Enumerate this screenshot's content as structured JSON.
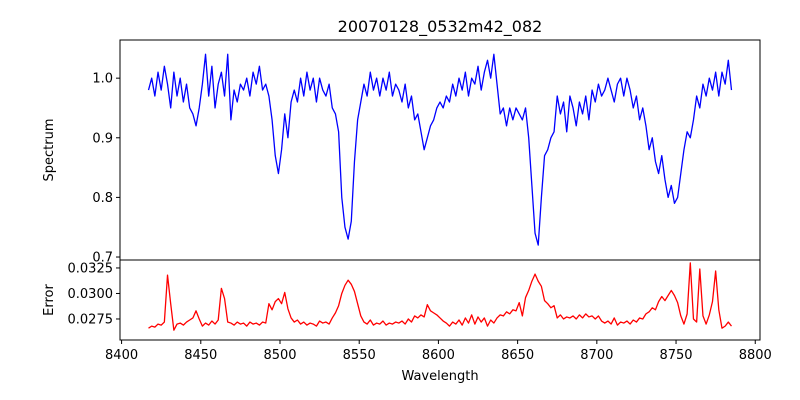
{
  "chart_data": [
    {
      "type": "line",
      "title": "20070128_0532m42_082",
      "xlabel": "",
      "ylabel": "Spectrum",
      "xlim": [
        8399,
        8803
      ],
      "ylim": [
        0.695,
        1.064
      ],
      "yticks": [
        0.7,
        0.8,
        0.9,
        1.0
      ],
      "ytick_labels": [
        "0.7",
        "0.8",
        "0.9",
        "1.0"
      ],
      "color": "#0000ff",
      "x_start": 8417,
      "x_step": 2,
      "values": [
        0.98,
        1.0,
        0.97,
        1.01,
        0.98,
        1.02,
        0.99,
        0.95,
        1.01,
        0.97,
        1.0,
        0.96,
        0.99,
        0.95,
        0.94,
        0.92,
        0.95,
        0.99,
        1.04,
        0.97,
        1.02,
        0.95,
        0.99,
        1.01,
        0.97,
        1.04,
        0.93,
        0.98,
        0.96,
        0.99,
        0.98,
        1.0,
        0.97,
        1.01,
        0.99,
        1.02,
        0.98,
        0.99,
        0.97,
        0.93,
        0.87,
        0.84,
        0.88,
        0.94,
        0.9,
        0.96,
        0.98,
        0.96,
        1.0,
        0.97,
        1.01,
        0.98,
        1.0,
        0.96,
        1.0,
        0.98,
        0.97,
        0.99,
        0.95,
        0.94,
        0.91,
        0.8,
        0.75,
        0.73,
        0.76,
        0.86,
        0.93,
        0.96,
        0.99,
        0.97,
        1.01,
        0.98,
        1.0,
        0.97,
        1.0,
        0.98,
        1.01,
        0.97,
        0.99,
        0.98,
        0.96,
        0.99,
        0.95,
        0.97,
        0.93,
        0.94,
        0.91,
        0.88,
        0.9,
        0.92,
        0.93,
        0.95,
        0.96,
        0.95,
        0.97,
        0.96,
        0.99,
        0.97,
        1.0,
        0.98,
        1.01,
        0.97,
        1.0,
        0.99,
        1.02,
        0.98,
        1.01,
        1.03,
        1.0,
        1.04,
        0.99,
        0.94,
        0.95,
        0.92,
        0.95,
        0.93,
        0.95,
        0.94,
        0.93,
        0.95,
        0.9,
        0.82,
        0.74,
        0.72,
        0.8,
        0.87,
        0.88,
        0.9,
        0.91,
        0.97,
        0.94,
        0.96,
        0.91,
        0.97,
        0.95,
        0.92,
        0.96,
        0.94,
        0.97,
        0.93,
        0.98,
        0.96,
        0.99,
        0.97,
        0.98,
        1.0,
        0.98,
        0.96,
        0.99,
        1.0,
        0.97,
        1.0,
        0.98,
        0.95,
        0.97,
        0.93,
        0.95,
        0.92,
        0.88,
        0.9,
        0.86,
        0.84,
        0.87,
        0.83,
        0.8,
        0.82,
        0.79,
        0.8,
        0.84,
        0.88,
        0.91,
        0.9,
        0.93,
        0.97,
        0.95,
        0.99,
        0.97,
        1.0,
        0.98,
        1.01,
        0.97,
        1.01,
        0.99,
        1.03,
        0.98
      ]
    },
    {
      "type": "line",
      "title": "",
      "xlabel": "Wavelength",
      "ylabel": "Error",
      "xlim": [
        8399,
        8803
      ],
      "ylim": [
        0.02544,
        0.03328
      ],
      "xticks": [
        8400,
        8450,
        8500,
        8550,
        8600,
        8650,
        8700,
        8750,
        8800
      ],
      "xtick_labels": [
        "8400",
        "8450",
        "8500",
        "8550",
        "8600",
        "8650",
        "8700",
        "8750",
        "8800"
      ],
      "yticks": [
        0.0275,
        0.03,
        0.0325
      ],
      "ytick_labels": [
        "0.0275",
        "0.0300",
        "0.0325"
      ],
      "color": "#ff0000",
      "x_start": 8417,
      "x_step": 2,
      "values": [
        0.0266,
        0.0268,
        0.0267,
        0.027,
        0.0269,
        0.0272,
        0.0318,
        0.029,
        0.0264,
        0.027,
        0.0271,
        0.0269,
        0.0272,
        0.0274,
        0.0276,
        0.0283,
        0.0275,
        0.0268,
        0.0271,
        0.0269,
        0.0273,
        0.027,
        0.0274,
        0.0305,
        0.0295,
        0.0272,
        0.0271,
        0.0269,
        0.0272,
        0.027,
        0.0271,
        0.0268,
        0.0272,
        0.027,
        0.0271,
        0.0269,
        0.0272,
        0.0271,
        0.029,
        0.0284,
        0.0292,
        0.0295,
        0.029,
        0.0301,
        0.0285,
        0.0276,
        0.0272,
        0.0274,
        0.027,
        0.0272,
        0.0269,
        0.0271,
        0.027,
        0.0268,
        0.0273,
        0.0271,
        0.0272,
        0.027,
        0.0276,
        0.0281,
        0.0288,
        0.03,
        0.0308,
        0.0313,
        0.0309,
        0.0302,
        0.029,
        0.0278,
        0.0272,
        0.027,
        0.0274,
        0.0269,
        0.0271,
        0.027,
        0.0273,
        0.0269,
        0.0271,
        0.027,
        0.0272,
        0.0271,
        0.0273,
        0.027,
        0.0275,
        0.0272,
        0.0278,
        0.0276,
        0.0279,
        0.0277,
        0.0289,
        0.0283,
        0.0281,
        0.0279,
        0.0276,
        0.0273,
        0.0271,
        0.0268,
        0.0272,
        0.027,
        0.0274,
        0.0269,
        0.0276,
        0.0271,
        0.0279,
        0.027,
        0.0277,
        0.0272,
        0.0276,
        0.0268,
        0.0274,
        0.0271,
        0.0276,
        0.0279,
        0.0278,
        0.0282,
        0.028,
        0.0284,
        0.0283,
        0.0291,
        0.0278,
        0.0296,
        0.0303,
        0.0312,
        0.0319,
        0.0312,
        0.0307,
        0.0293,
        0.029,
        0.0286,
        0.0288,
        0.0276,
        0.0279,
        0.0275,
        0.0277,
        0.0276,
        0.0278,
        0.0275,
        0.0279,
        0.0276,
        0.028,
        0.0277,
        0.0278,
        0.0275,
        0.0278,
        0.0273,
        0.0271,
        0.0273,
        0.027,
        0.0276,
        0.0269,
        0.0272,
        0.0271,
        0.0273,
        0.027,
        0.0274,
        0.0272,
        0.0276,
        0.0275,
        0.028,
        0.0282,
        0.0286,
        0.0284,
        0.0292,
        0.0297,
        0.0293,
        0.0298,
        0.0303,
        0.0298,
        0.0291,
        0.0278,
        0.027,
        0.028,
        0.033,
        0.0275,
        0.0272,
        0.0324,
        0.0278,
        0.027,
        0.0279,
        0.0292,
        0.0322,
        0.0284,
        0.0266,
        0.0268,
        0.0272,
        0.0268
      ]
    }
  ]
}
